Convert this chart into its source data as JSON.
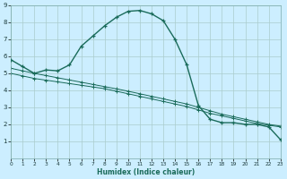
{
  "xlabel": "Humidex (Indice chaleur)",
  "bg_color": "#cceeff",
  "line_color": "#1a6b5a",
  "grid_color": "#aacccc",
  "xlim": [
    0,
    23
  ],
  "ylim": [
    0,
    9
  ],
  "xticks": [
    0,
    1,
    2,
    3,
    4,
    5,
    6,
    7,
    8,
    9,
    10,
    11,
    12,
    13,
    14,
    15,
    16,
    17,
    18,
    19,
    20,
    21,
    22,
    23
  ],
  "yticks": [
    1,
    2,
    3,
    4,
    5,
    6,
    7,
    8,
    9
  ],
  "curve1_x": [
    0,
    1,
    2,
    3,
    4,
    5,
    6,
    7,
    8,
    9,
    10,
    11,
    12,
    13,
    14,
    15,
    16,
    17,
    18,
    19,
    20,
    21,
    22,
    23
  ],
  "curve1_y": [
    5.8,
    5.4,
    5.0,
    5.2,
    5.15,
    5.5,
    6.6,
    7.2,
    7.8,
    8.3,
    8.65,
    8.7,
    8.5,
    8.1,
    7.0,
    5.5,
    3.1,
    2.3,
    2.1,
    2.1,
    2.0,
    2.0,
    1.85,
    1.1
  ],
  "curve2_x": [
    0,
    1,
    2,
    3,
    4,
    5,
    6,
    7,
    8,
    9,
    10,
    11,
    12,
    13,
    14,
    15,
    16,
    17,
    18,
    19,
    20,
    21,
    22,
    23
  ],
  "curve2_y": [
    5.0,
    4.85,
    4.7,
    4.6,
    4.5,
    4.4,
    4.3,
    4.2,
    4.1,
    3.95,
    3.8,
    3.65,
    3.5,
    3.35,
    3.2,
    3.05,
    2.85,
    2.65,
    2.5,
    2.35,
    2.2,
    2.05,
    1.95,
    1.85
  ],
  "curve3_x": [
    0,
    1,
    2,
    3,
    4,
    5,
    6,
    7,
    8,
    9,
    10,
    11,
    12,
    13,
    14,
    15,
    16,
    17,
    18,
    19,
    20,
    21,
    22,
    23
  ],
  "curve3_y": [
    5.3,
    5.15,
    5.0,
    4.87,
    4.74,
    4.61,
    4.48,
    4.35,
    4.22,
    4.09,
    3.95,
    3.8,
    3.65,
    3.5,
    3.35,
    3.2,
    3.0,
    2.8,
    2.6,
    2.45,
    2.3,
    2.15,
    2.0,
    1.9
  ]
}
